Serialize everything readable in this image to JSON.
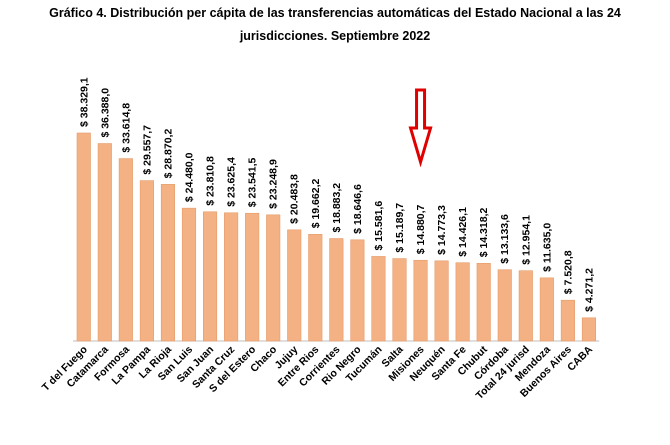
{
  "chart_data": {
    "type": "bar",
    "title_line1": "Gráfico 4. Distribución per cápita de las transferencias automáticas del Estado Nacional a las 24",
    "title_line2": "jurisdicciones. Septiembre 2022",
    "xlabel": "",
    "ylabel": "",
    "ylim": [
      0,
      40000
    ],
    "grid": false,
    "categories": [
      "T del Fuego",
      "Catamarca",
      "Formosa",
      "La Pampa",
      "La Rioja",
      "San Luis",
      "San Juan",
      "Santa Cruz",
      "S del Estero",
      "Chaco",
      "Jujuy",
      "Entre Rios",
      "Corrientes",
      "Rio Negro",
      "Tucumán",
      "Salta",
      "Misiones",
      "Neuquén",
      "Santa Fe",
      "Chubut",
      "Córdoba",
      "Total 24 jurisd",
      "Mendoza",
      "Buenos Aires",
      "CABA"
    ],
    "values": [
      38329.1,
      36388.0,
      33614.8,
      29557.7,
      28870.2,
      24480.0,
      23810.8,
      23625.4,
      23541.5,
      23248.9,
      20483.8,
      19662.2,
      18883.2,
      18646.6,
      15581.6,
      15189.7,
      14880.7,
      14773.3,
      14426.1,
      14318.2,
      13133.6,
      12954.1,
      11635.0,
      7520.8,
      4271.2
    ],
    "value_labels": [
      "$ 38.329,1",
      "$ 36.388,0",
      "$ 33.614,8",
      "$ 29.557,7",
      "$ 28.870,2",
      "$ 24.480,0",
      "$ 23.810,8",
      "$ 23.625,4",
      "$ 23.541,5",
      "$ 23.248,9",
      "$ 20.483,8",
      "$ 19.662,2",
      "$ 18.883,2",
      "$ 18.646,6",
      "$ 15.581,6",
      "$ 15.189,7",
      "$ 14.880,7",
      "$ 14.773,3",
      "$ 14.426,1",
      "$ 14.318,2",
      "$ 13.133,6",
      "$ 12.954,1",
      "$ 11.635,0",
      "$ 7.520,8",
      "$ 4.271,2"
    ],
    "annotation": {
      "type": "arrow",
      "direction": "down",
      "target_category": "Misiones",
      "color": "#e00000"
    },
    "bar_color": "#f4b183"
  }
}
